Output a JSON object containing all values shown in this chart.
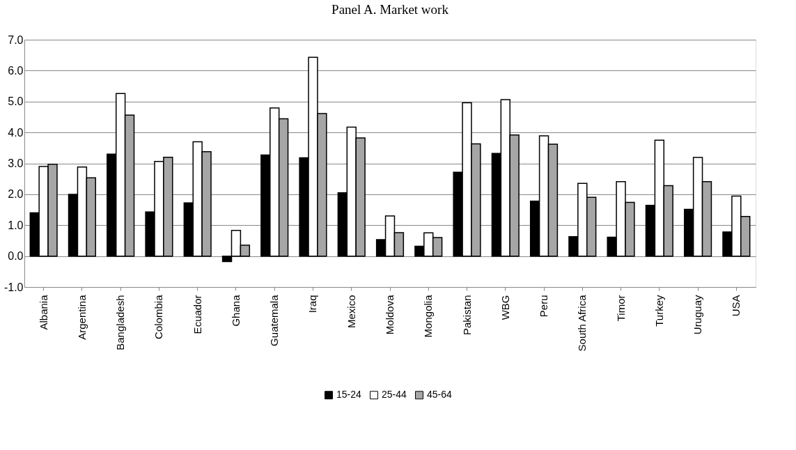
{
  "chart_data": {
    "type": "bar",
    "title": "Panel A. Market work",
    "categories": [
      "Albania",
      "Argentina",
      "Bangladesh",
      "Colombia",
      "Ecuador",
      "Ghana",
      "Guatemala",
      "Iraq",
      "Mexico",
      "Moldova",
      "Mongolia",
      "Pakistan",
      "WBG",
      "Peru",
      "South Africa",
      "Timor",
      "Turkey",
      "Uruguay",
      "USA"
    ],
    "series": [
      {
        "name": "15-24",
        "color": "#000000",
        "values": [
          1.4,
          2.0,
          3.3,
          1.43,
          1.72,
          -0.18,
          3.27,
          3.18,
          2.05,
          0.53,
          0.32,
          2.71,
          3.32,
          1.78,
          0.63,
          0.61,
          1.64,
          1.51,
          0.78
        ]
      },
      {
        "name": "25-44",
        "color": "#ffffff",
        "values": [
          2.9,
          2.88,
          5.26,
          3.06,
          3.7,
          0.83,
          4.79,
          6.43,
          4.17,
          1.3,
          0.75,
          4.96,
          5.06,
          3.89,
          2.35,
          2.41,
          3.75,
          3.19,
          1.94
        ]
      },
      {
        "name": "45-64",
        "color": "#a6a6a6",
        "values": [
          2.97,
          2.53,
          4.56,
          3.2,
          3.38,
          0.35,
          4.44,
          4.61,
          3.82,
          0.76,
          0.6,
          3.63,
          3.92,
          3.62,
          1.9,
          1.74,
          2.28,
          2.41,
          1.28
        ]
      }
    ],
    "ylim": [
      -1,
      7
    ],
    "yticks": [
      {
        "value": -1,
        "label": "-1.0"
      },
      {
        "value": 0,
        "label": "0.0"
      },
      {
        "value": 1,
        "label": "1.0"
      },
      {
        "value": 2,
        "label": "2.0"
      },
      {
        "value": 3,
        "label": "3.0"
      },
      {
        "value": 4,
        "label": "4.0"
      },
      {
        "value": 5,
        "label": "5.0"
      },
      {
        "value": 6,
        "label": "6.0"
      },
      {
        "value": 7,
        "label": "7.0"
      }
    ],
    "grid": "y",
    "legend": "bottom"
  }
}
